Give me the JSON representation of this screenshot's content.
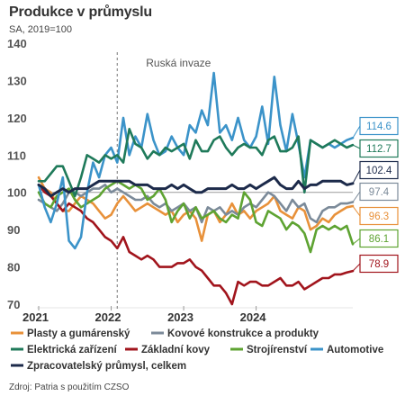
{
  "title": "Produkce v průmyslu",
  "subtitle": "SA, 2019=100",
  "source": "Zdroj: Patria s použitím CZSO",
  "chart_data": {
    "type": "line",
    "title": "Produkce v průmyslu",
    "subtitle": "SA, 2019=100",
    "xlabel": "",
    "ylabel": "",
    "ylim": [
      70,
      140
    ],
    "y_ticks": [
      70,
      80,
      90,
      100,
      110,
      120,
      130,
      140
    ],
    "x_ticks": [
      "2021",
      "2022",
      "2023",
      "2024"
    ],
    "x": [
      "2021-01",
      "2021-02",
      "2021-03",
      "2021-04",
      "2021-05",
      "2021-06",
      "2021-07",
      "2021-08",
      "2021-09",
      "2021-10",
      "2021-11",
      "2021-12",
      "2022-01",
      "2022-02",
      "2022-03",
      "2022-04",
      "2022-05",
      "2022-06",
      "2022-07",
      "2022-08",
      "2022-09",
      "2022-10",
      "2022-11",
      "2022-12",
      "2023-01",
      "2023-02",
      "2023-03",
      "2023-04",
      "2023-05",
      "2023-06",
      "2023-07",
      "2023-08",
      "2023-09",
      "2023-10",
      "2023-11",
      "2023-12",
      "2024-01",
      "2024-02",
      "2024-03",
      "2024-04",
      "2024-05",
      "2024-06",
      "2024-07",
      "2024-08",
      "2024-09",
      "2024-10",
      "2024-11",
      "2024-12",
      "2025-01",
      "2025-02",
      "2025-03",
      "2025-04",
      "2025-05"
    ],
    "annotation": {
      "label": "Ruská invaze",
      "x": "2022-02"
    },
    "grid": false,
    "legend_position": "bottom",
    "series": [
      {
        "name": "Plasty a gumárenský",
        "color": "#e8913a",
        "end_label": "96.3",
        "values": [
          104,
          101,
          100,
          97,
          95,
          95,
          97,
          99,
          98,
          97,
          95,
          93,
          94,
          97,
          99,
          97,
          95,
          96,
          97,
          96,
          95,
          94,
          95,
          92,
          94,
          95,
          93,
          87,
          94,
          95,
          92,
          94,
          97,
          94,
          95,
          93,
          95,
          96,
          97,
          99,
          95,
          94,
          93,
          96,
          95,
          90,
          91,
          93,
          92,
          94,
          95,
          96,
          96.3
        ]
      },
      {
        "name": "Kovové konstrukce a produkty",
        "color": "#7b8a99",
        "end_label": "97.4",
        "values": [
          98,
          97,
          96,
          95,
          97,
          100,
          100,
          99,
          100,
          101,
          101,
          102,
          100,
          101,
          100,
          99,
          98,
          98,
          99,
          97,
          96,
          97,
          95,
          96,
          97,
          95,
          96,
          92,
          96,
          95,
          96,
          94,
          95,
          94,
          96,
          97,
          96,
          98,
          100,
          99,
          97,
          95,
          98,
          96,
          97,
          93,
          92,
          95,
          96,
          96,
          97,
          97,
          97.4
        ]
      },
      {
        "name": "Elektrická zařízení",
        "color": "#1f7a5a",
        "end_label": "112.7",
        "values": [
          103,
          103,
          105,
          107,
          107,
          103,
          99,
          104,
          110,
          109,
          108,
          110,
          109,
          110,
          108,
          117,
          113,
          112,
          109,
          111,
          110,
          112,
          111,
          112,
          113,
          109,
          114,
          111,
          111,
          114,
          115,
          112,
          110,
          112,
          113,
          112,
          112,
          110,
          114,
          115,
          111,
          111,
          112,
          115,
          100,
          114,
          113,
          112,
          113,
          114,
          113,
          112,
          112.7
        ]
      },
      {
        "name": "Základní kovy",
        "color": "#a1141c",
        "end_label": "78.9",
        "values": [
          102,
          100,
          99,
          97,
          95,
          97,
          96,
          95,
          93,
          92,
          90,
          88,
          87,
          85,
          88,
          84,
          83,
          82,
          83,
          82,
          80,
          80,
          80,
          81,
          81,
          82,
          80,
          79,
          77,
          75,
          75,
          73,
          70,
          76,
          75,
          76,
          76,
          75,
          75,
          76,
          77,
          75,
          75,
          76,
          74,
          75,
          76,
          77,
          77,
          78,
          78,
          78.5,
          78.9
        ]
      },
      {
        "name": "Strojírenství",
        "color": "#5ea332",
        "end_label": "86.1",
        "values": [
          100,
          97,
          96,
          99,
          100,
          101,
          98,
          96,
          97,
          98,
          99,
          101,
          102,
          103,
          102,
          101,
          102,
          101,
          98,
          99,
          101,
          98,
          92,
          95,
          97,
          93,
          96,
          93,
          94,
          95,
          93,
          92,
          94,
          93,
          100,
          98,
          92,
          91,
          95,
          94,
          93,
          90,
          92,
          91,
          89,
          84,
          90,
          91,
          90,
          91,
          90,
          91,
          86.1
        ]
      },
      {
        "name": "Automotive",
        "color": "#3b93c9",
        "end_label": "114.6",
        "values": [
          102,
          96,
          92,
          97,
          104,
          87,
          85,
          88,
          100,
          108,
          104,
          110,
          112,
          108,
          120,
          110,
          115,
          112,
          121,
          114,
          110,
          111,
          115,
          112,
          110,
          118,
          116,
          122,
          118,
          132,
          116,
          118,
          114,
          120,
          114,
          112,
          115,
          123,
          113,
          131,
          118,
          111,
          121,
          113,
          104,
          114,
          113,
          112,
          113,
          112,
          113,
          114,
          114.6
        ]
      },
      {
        "name": "Zpracovatelský průmysl, celkem",
        "color": "#1c2a4a",
        "end_label": "102.4",
        "values": [
          102,
          101,
          99,
          100,
          101,
          100,
          101,
          101,
          101,
          102,
          103,
          103,
          103,
          103,
          103,
          103,
          102,
          102,
          102,
          101,
          101,
          101,
          102,
          101,
          102,
          101,
          100,
          100,
          101,
          101,
          101,
          101,
          102,
          101,
          101,
          102,
          101,
          102,
          103,
          104,
          102,
          101,
          101,
          103,
          101,
          102,
          102,
          103,
          103,
          103,
          103,
          102,
          102.4
        ]
      }
    ]
  }
}
